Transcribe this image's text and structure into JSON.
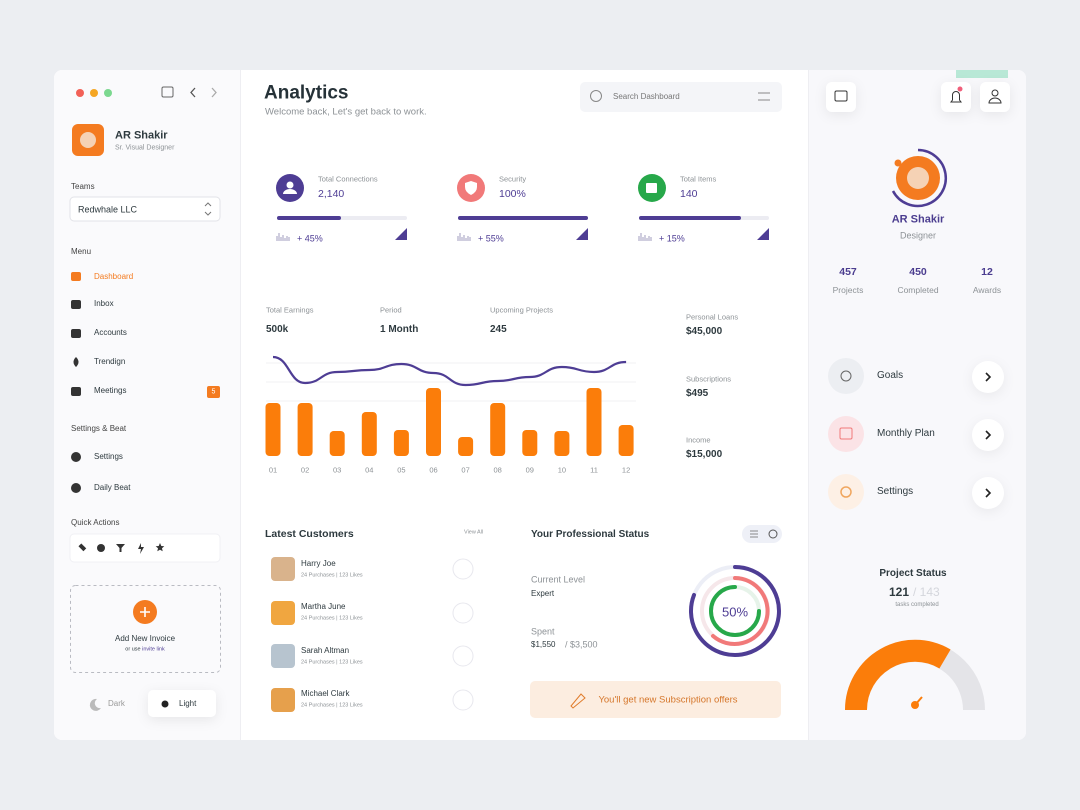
{
  "sidebar": {
    "user": {
      "name": "AR Shakir",
      "role": "Sr. Visual Designer"
    },
    "teams_label": "Teams",
    "team": "Redwhale LLC",
    "menu_label": "Menu",
    "menu": [
      "Dashboard",
      "Inbox",
      "Accounts",
      "Trendign",
      "Meetings"
    ],
    "meetings_badge": 5,
    "settings_label": "Settings & Beat",
    "settings": [
      "Settings",
      "Daily Beat"
    ],
    "quick_actions_label": "Quick Actions",
    "add_invoice": {
      "title": "Add New Invoice",
      "note": "or use",
      "link": "invite link"
    },
    "theme": [
      "Dark",
      "Light"
    ]
  },
  "header": {
    "title": "Analytics",
    "subtitle": "Welcome back, Let's get back to work.",
    "search": "Search Dashboard"
  },
  "stats": [
    {
      "label": "Total Connections",
      "value": "2,140",
      "change": "+ 45%"
    },
    {
      "label": "Security",
      "value": "100%",
      "change": "+ 55%"
    },
    {
      "label": "Total Items",
      "value": "140",
      "change": "+ 15%"
    }
  ],
  "earnings": [
    {
      "label": "Total Earnings",
      "value": "500k"
    },
    {
      "label": "Period",
      "value": "1 Month"
    },
    {
      "label": "Upcoming Projects",
      "value": 245
    }
  ],
  "earnings_chart": {
    "type": "bar",
    "categories": [
      "01",
      "02",
      "03",
      "04",
      "05",
      "06",
      "07",
      "08",
      "09",
      "10",
      "11",
      "12"
    ],
    "values": [
      53,
      53,
      25,
      44,
      26,
      68,
      19,
      53,
      26,
      25,
      68,
      31
    ],
    "color": "#fb7d0a",
    "line": {
      "values": [
        99,
        73,
        84,
        86,
        92,
        83,
        71,
        75,
        79,
        89,
        84,
        94
      ],
      "color": "#4e3d94"
    }
  },
  "balances": [
    {
      "label": "Personal Loans",
      "value": "$45,000"
    },
    {
      "label": "Subscriptions",
      "value": "$495"
    },
    {
      "label": "Income",
      "value": "$15,000"
    }
  ],
  "customers": {
    "title": "Latest Customers",
    "view_all": "View All",
    "items": [
      {
        "name": "Harry Joe",
        "purchases": "24 Purchases",
        "likes": "123 Likes"
      },
      {
        "name": "Martha June",
        "purchases": "24 Purchases",
        "likes": "123 Likes"
      },
      {
        "name": "Sarah Altman",
        "purchases": "24 Purchases",
        "likes": "123 Likes"
      },
      {
        "name": "Michael Clark",
        "purchases": "24 Purchases",
        "likes": "123 Likes"
      }
    ]
  },
  "status": {
    "title": "Your Professional Status",
    "level_label": "Current Level",
    "level": "Expert",
    "spent_label": "Spent",
    "spent": "$1,550",
    "spent_total": "/ $3,500",
    "progress": "50%",
    "offer": "You'll get new Subscription offers"
  },
  "profile": {
    "name": "AR Shakir",
    "role": "Designer",
    "stats": [
      {
        "value": 457,
        "label": "Projects"
      },
      {
        "value": 450,
        "label": "Completed"
      },
      {
        "value": 12,
        "label": "Awards"
      }
    ],
    "links": [
      "Goals",
      "Monthly Plan",
      "Settings"
    ],
    "project_status": {
      "title": "Project Status",
      "done": 121,
      "total": "/ 143",
      "note": "tasks completed"
    }
  }
}
